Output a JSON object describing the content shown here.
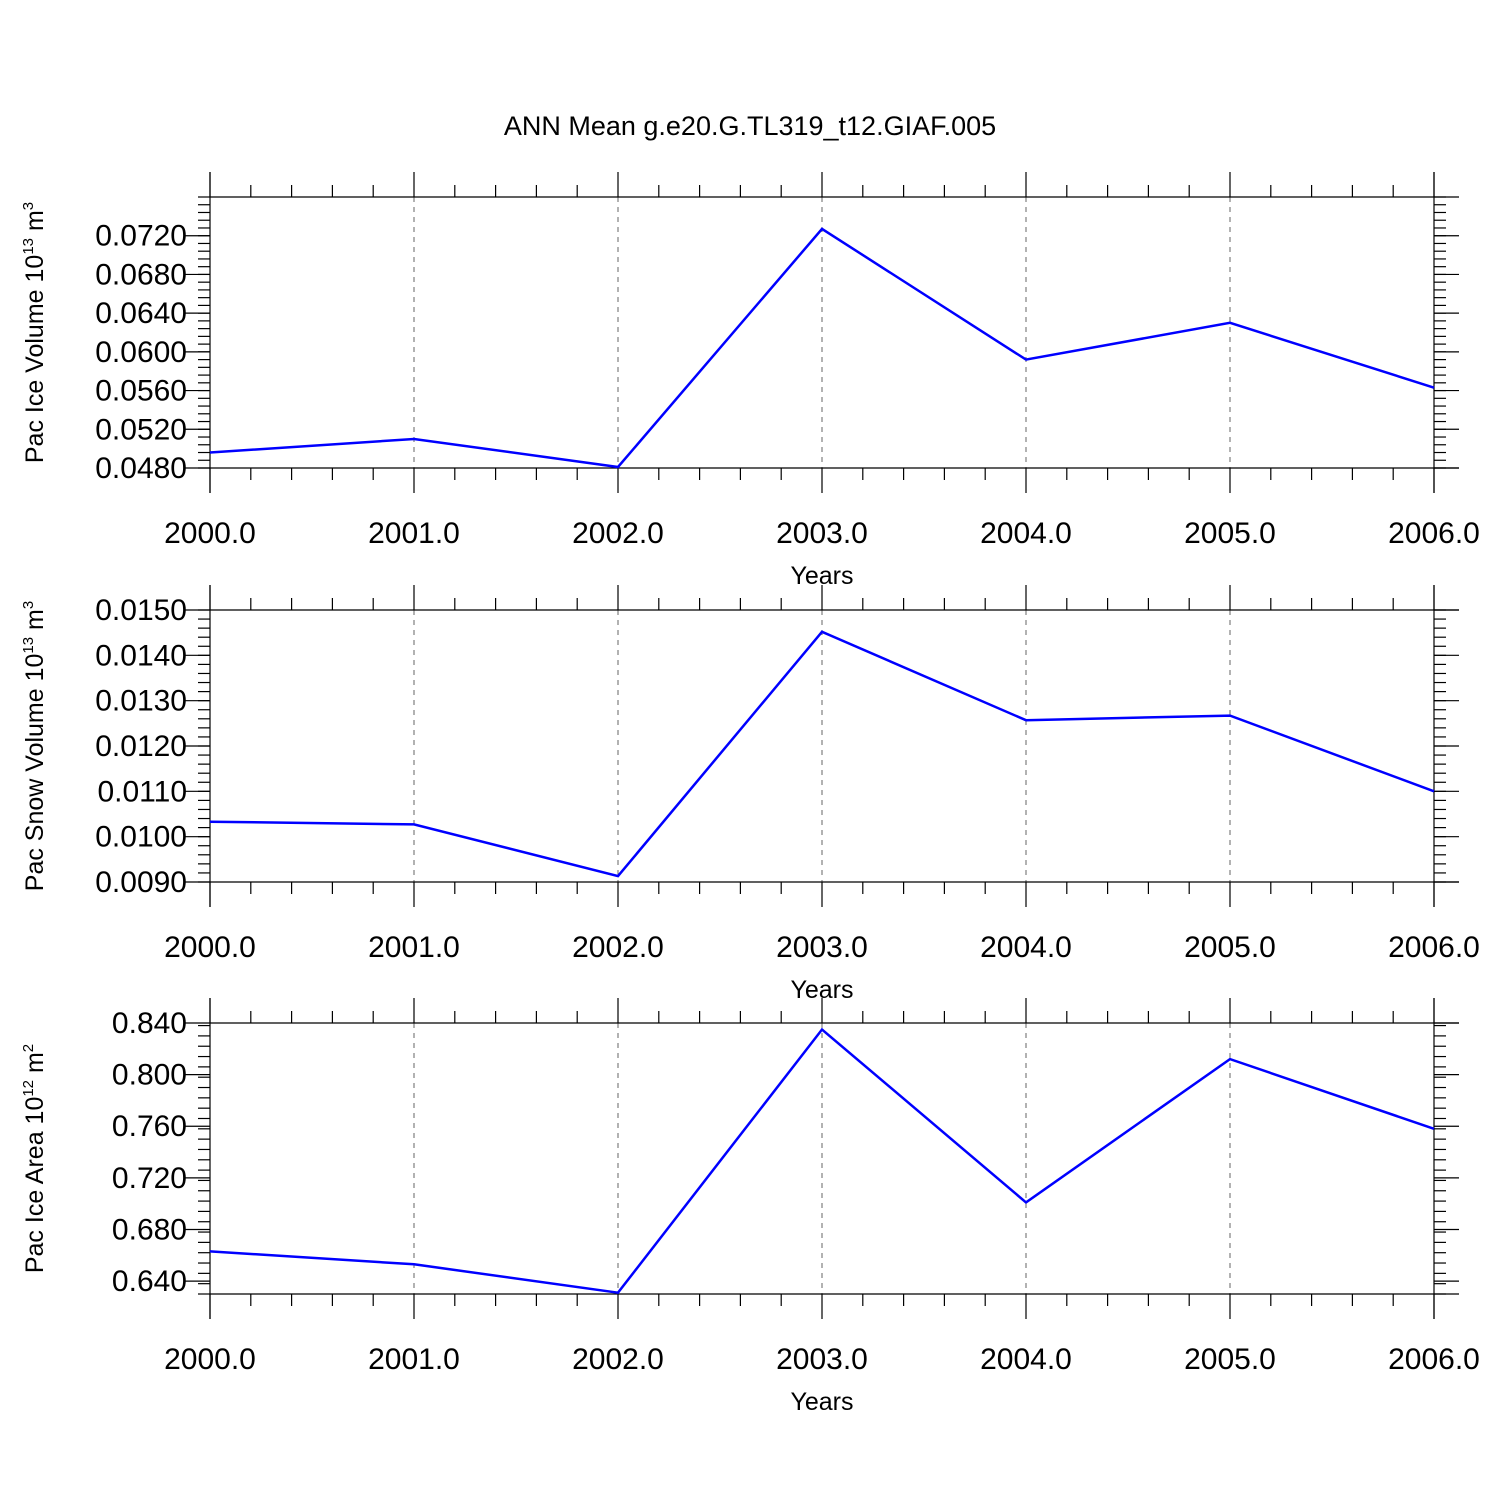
{
  "figure": {
    "title": "ANN Mean g.e20.G.TL319_t12.GIAF.005"
  },
  "chart_data": [
    {
      "type": "line",
      "title": "ANN Mean g.e20.G.TL319_t12.GIAF.005",
      "xlabel": "Years",
      "ylabel": {
        "main": "Pac Ice Volume 10",
        "exp": "13",
        "unit_pre": " m",
        "unit_exp": "3"
      },
      "x": [
        2000,
        2001,
        2002,
        2003,
        2004,
        2005,
        2006
      ],
      "x_ticks": [
        2000,
        2001,
        2002,
        2003,
        2004,
        2005,
        2006
      ],
      "x_tick_labels": [
        "2000.0",
        "2001.0",
        "2002.0",
        "2003.0",
        "2004.0",
        "2005.0",
        "2006.0"
      ],
      "xlim": [
        2000,
        2006
      ],
      "ylim": [
        0.048,
        0.076
      ],
      "y_ticks": [
        0.048,
        0.052,
        0.056,
        0.06,
        0.064,
        0.068,
        0.072
      ],
      "y_tick_labels": [
        "0.0480",
        "0.0520",
        "0.0560",
        "0.0600",
        "0.0640",
        "0.0680",
        "0.0720"
      ],
      "y_minor_step": 0.0008,
      "series": [
        {
          "values": [
            0.0496,
            0.051,
            0.0481,
            0.0727,
            0.0592,
            0.063,
            0.0563
          ],
          "color": "#0000ff"
        }
      ],
      "grid": "vertical dashed at x ticks"
    },
    {
      "type": "line",
      "xlabel": "Years",
      "ylabel": {
        "main": "Pac Snow Volume 10",
        "exp": "13",
        "unit_pre": " m",
        "unit_exp": "3"
      },
      "x": [
        2000,
        2001,
        2002,
        2003,
        2004,
        2005,
        2006
      ],
      "x_ticks": [
        2000,
        2001,
        2002,
        2003,
        2004,
        2005,
        2006
      ],
      "x_tick_labels": [
        "2000.0",
        "2001.0",
        "2002.0",
        "2003.0",
        "2004.0",
        "2005.0",
        "2006.0"
      ],
      "xlim": [
        2000,
        2006
      ],
      "ylim": [
        0.009,
        0.015
      ],
      "y_ticks": [
        0.009,
        0.01,
        0.011,
        0.012,
        0.013,
        0.014,
        0.015
      ],
      "y_tick_labels": [
        "0.0090",
        "0.0100",
        "0.0110",
        "0.0120",
        "0.0130",
        "0.0140",
        "0.0150"
      ],
      "y_minor_step": 0.0002,
      "series": [
        {
          "values": [
            0.01033,
            0.01027,
            0.00913,
            0.01452,
            0.01257,
            0.01267,
            0.011
          ],
          "color": "#0000ff"
        }
      ],
      "grid": "vertical dashed at x ticks"
    },
    {
      "type": "line",
      "xlabel": "Years",
      "ylabel": {
        "main": "Pac Ice Area 10",
        "exp": "12",
        "unit_pre": " m",
        "unit_exp": "2"
      },
      "x": [
        2000,
        2001,
        2002,
        2003,
        2004,
        2005,
        2006
      ],
      "x_ticks": [
        2000,
        2001,
        2002,
        2003,
        2004,
        2005,
        2006
      ],
      "x_tick_labels": [
        "2000.0",
        "2001.0",
        "2002.0",
        "2003.0",
        "2004.0",
        "2005.0",
        "2006.0"
      ],
      "xlim": [
        2000,
        2006
      ],
      "ylim": [
        0.63,
        0.84
      ],
      "y_ticks": [
        0.64,
        0.68,
        0.72,
        0.76,
        0.8,
        0.84
      ],
      "y_tick_labels": [
        "0.640",
        "0.680",
        "0.720",
        "0.760",
        "0.800",
        "0.840"
      ],
      "y_minor_step": 0.008,
      "series": [
        {
          "values": [
            0.663,
            0.653,
            0.631,
            0.835,
            0.701,
            0.812,
            0.758
          ],
          "color": "#0000ff"
        }
      ],
      "grid": "vertical dashed at x ticks"
    }
  ]
}
